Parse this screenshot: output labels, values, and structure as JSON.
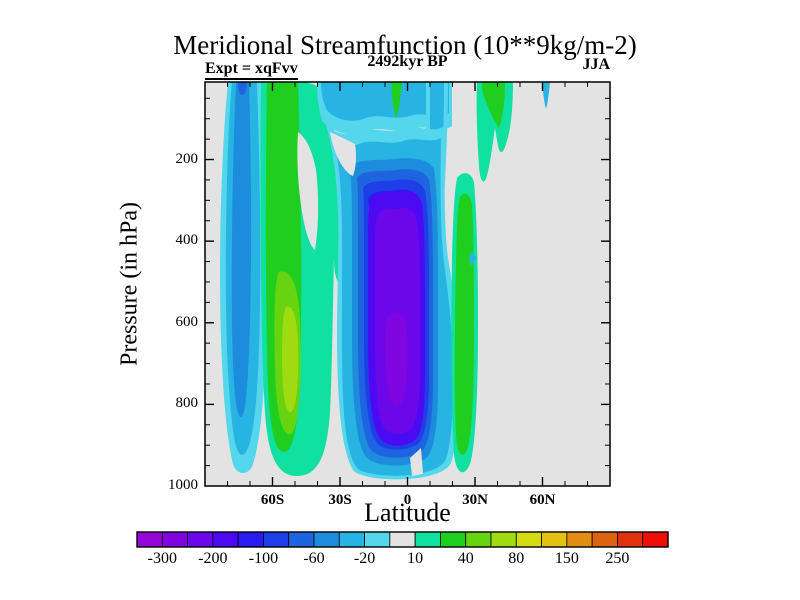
{
  "title": "Meridional Streamfunction (10**9kg/m-2)",
  "subtitle_left": "Expt = xqFvv",
  "subtitle_center": "2492kyr BP",
  "subtitle_right": "JJA",
  "chart_data": {
    "type": "filled-contour",
    "title": "Meridional Streamfunction (10**9kg/m-2)",
    "experiment": "xqFvv",
    "time": "2492kyr BP",
    "season": "JJA",
    "xlabel": "Latitude",
    "ylabel": "Pressure (in hPa)",
    "x_axis": {
      "range_deg": [
        -90,
        90
      ],
      "major_ticks_deg": [
        -60,
        -30,
        0,
        30,
        60
      ],
      "major_tick_labels": [
        "60S",
        "30S",
        "0",
        "30N",
        "60N"
      ],
      "minor_tick_step_deg": 10
    },
    "y_axis": {
      "range_hpa": [
        10,
        1000
      ],
      "major_ticks_hpa": [
        200,
        400,
        600,
        800,
        1000
      ],
      "major_tick_labels": [
        "200",
        "400",
        "600",
        "800",
        "1000"
      ],
      "minor_tick_step_hpa": 50
    },
    "grid": false,
    "legend_position": "bottom-colorbar",
    "colorbar": {
      "labels": [
        "-300",
        "-200",
        "-100",
        "-60",
        "-20",
        "10",
        "40",
        "80",
        "150",
        "250"
      ],
      "levels": [
        -300,
        -250,
        -200,
        -150,
        -100,
        -80,
        -60,
        -40,
        -20,
        -10,
        10,
        20,
        40,
        60,
        80,
        100,
        150,
        200,
        250,
        300
      ],
      "colors": [
        "#9606d8",
        "#7f06e0",
        "#6b08ea",
        "#4c0af2",
        "#2a1bf2",
        "#1e3fe8",
        "#1e64e0",
        "#1e8cdc",
        "#28b4e2",
        "#54d6ec",
        "#e3e3e3",
        "#10e0a0",
        "#20ce20",
        "#68d411",
        "#9edc11",
        "#d2dc11",
        "#e4c211",
        "#e28e11",
        "#dc6411",
        "#e13210",
        "#ee0f08"
      ],
      "neutral_band": [
        -10,
        10
      ]
    },
    "cells": [
      {
        "region": "75S-63S",
        "sign": "negative",
        "approx_extreme": -70,
        "vertical_extent_hpa": [
          10,
          950
        ]
      },
      {
        "region": "58S-45S Ferrel cell",
        "sign": "positive",
        "approx_extreme": 70,
        "vertical_extent_hpa": [
          10,
          1000
        ],
        "core_hpa": [
          550,
          800
        ]
      },
      {
        "region": "30S-8N Hadley cell",
        "sign": "negative",
        "approx_extreme": -260,
        "vertical_extent_hpa": [
          60,
          990
        ],
        "core_hpa": [
          300,
          900
        ]
      },
      {
        "region": "10N-18N",
        "sign": "positive",
        "approx_extreme": 30,
        "vertical_extent_hpa": [
          150,
          950
        ]
      },
      {
        "region": "20N-28N upper troposphere",
        "sign": "positive",
        "approx_extreme": 30,
        "vertical_extent_hpa": [
          10,
          250
        ]
      },
      {
        "region": "35N tropopause sliver",
        "sign": "negative",
        "approx_extreme": -30,
        "vertical_extent_hpa": [
          10,
          60
        ]
      }
    ],
    "units": "10**9 kg/m-2"
  }
}
